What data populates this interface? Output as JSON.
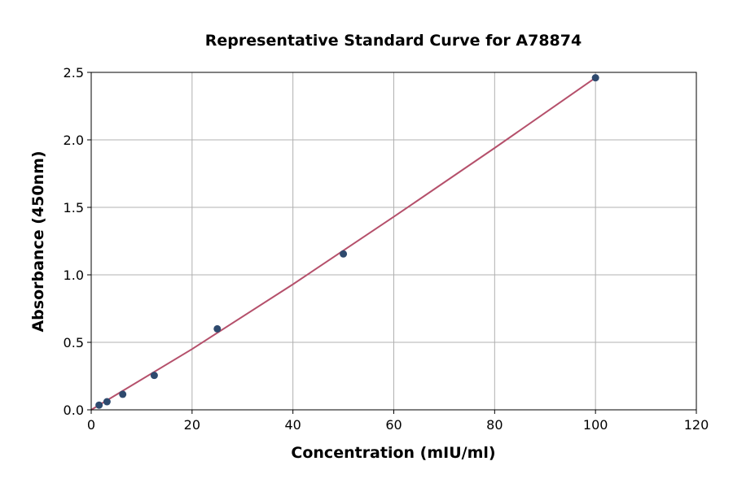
{
  "chart_data": {
    "type": "scatter",
    "title": "Representative Standard Curve for A78874",
    "xlabel": "Concentration (mIU/ml)",
    "ylabel": "Absorbance (450nm)",
    "xlim": [
      0,
      120
    ],
    "ylim": [
      0,
      2.5
    ],
    "x_ticks": [
      0,
      20,
      40,
      60,
      80,
      100,
      120
    ],
    "y_ticks": [
      0.0,
      0.5,
      1.0,
      1.5,
      2.0,
      2.5
    ],
    "x_tick_labels": [
      "0",
      "20",
      "40",
      "60",
      "80",
      "100",
      "120"
    ],
    "y_tick_labels": [
      "0.0",
      "0.5",
      "1.0",
      "1.5",
      "2.0",
      "2.5"
    ],
    "grid": true,
    "series": [
      {
        "kind": "points",
        "color": "#2e4a6e",
        "x": [
          1.56,
          3.13,
          6.25,
          12.5,
          25,
          50,
          100
        ],
        "y": [
          0.035,
          0.06,
          0.115,
          0.255,
          0.6,
          1.155,
          2.46
        ]
      },
      {
        "kind": "fit-line",
        "color": "#b5506b",
        "x": [
          0,
          20,
          40,
          60,
          80,
          100
        ],
        "y": [
          0.0,
          0.45,
          0.93,
          1.43,
          1.94,
          2.46
        ]
      }
    ]
  }
}
